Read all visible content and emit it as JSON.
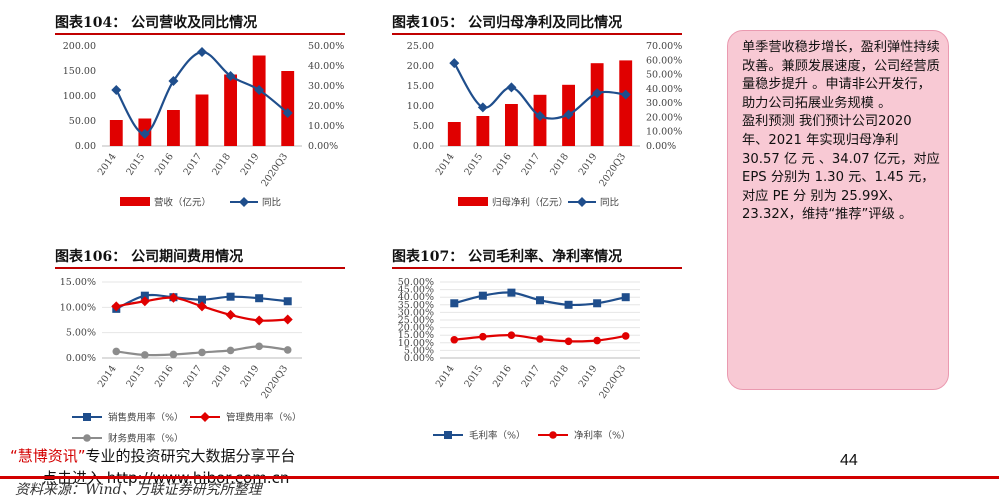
{
  "charts": {
    "c104": {
      "title": "图表104：  公司营收及同比情况",
      "chart_data": {
        "type": "bar+line",
        "categories": [
          "2014",
          "2015",
          "2016",
          "2017",
          "2018",
          "2019",
          "2020Q3"
        ],
        "series": [
          {
            "name": "营收（亿元）",
            "type": "bar",
            "axis": "left",
            "values": [
              52,
              55,
              72,
              103,
              143,
              181,
              150
            ]
          },
          {
            "name": "同比",
            "type": "line",
            "axis": "right",
            "values": [
              28.0,
              6.0,
              32.5,
              47.0,
              35.0,
              28.0,
              16.5
            ]
          }
        ],
        "left_ticks": [
          "0.00",
          "50.00",
          "100.00",
          "150.00",
          "200.00"
        ],
        "right_ticks": [
          "0.00%",
          "10.00%",
          "20.00%",
          "30.00%",
          "40.00%",
          "50.00%"
        ],
        "ylim_left": [
          0,
          200
        ],
        "ylim_right": [
          0,
          50
        ],
        "legend": "bottom"
      }
    },
    "c105": {
      "title": "图表105：  公司归母净利及同比情况",
      "chart_data": {
        "type": "bar+line",
        "categories": [
          "2014",
          "2015",
          "2016",
          "2017",
          "2018",
          "2019",
          "2020Q3"
        ],
        "series": [
          {
            "name": "归母净利（亿元）",
            "type": "bar",
            "axis": "left",
            "values": [
              6,
              7.5,
              10.5,
              12.8,
              15.3,
              20.7,
              21.4
            ]
          },
          {
            "name": "同比",
            "type": "line",
            "axis": "right",
            "values": [
              58,
              27,
              41,
              21,
              22,
              37,
              36
            ]
          }
        ],
        "left_ticks": [
          "0.00",
          "5.00",
          "10.00",
          "15.00",
          "20.00",
          "25.00"
        ],
        "right_ticks": [
          "0.00%",
          "10.00%",
          "20.00%",
          "30.00%",
          "40.00%",
          "50.00%",
          "60.00%",
          "70.00%"
        ],
        "ylim_left": [
          0,
          25
        ],
        "ylim_right": [
          0,
          70
        ],
        "legend": "bottom"
      }
    },
    "c106": {
      "title": "图表106：  公司期间费用情况",
      "chart_data": {
        "type": "line",
        "categories": [
          "2014",
          "2015",
          "2016",
          "2017",
          "2018",
          "2019",
          "2020Q3"
        ],
        "series": [
          {
            "name": "销售费用率（%）",
            "values": [
              9.7,
              12.3,
              12.0,
              11.5,
              12.1,
              11.8,
              11.2
            ],
            "color": "#1f4e8c",
            "marker": "square"
          },
          {
            "name": "管理费用率（%）",
            "values": [
              10.2,
              11.2,
              11.9,
              10.2,
              8.5,
              7.4,
              7.6
            ],
            "color": "#e00000",
            "marker": "diamond"
          },
          {
            "name": "财务费用率（%）",
            "values": [
              1.3,
              0.6,
              0.7,
              1.1,
              1.5,
              2.3,
              1.6
            ],
            "color": "#8c8c8c",
            "marker": "circle"
          }
        ],
        "ticks": [
          "0.00%",
          "5.00%",
          "10.00%",
          "15.00%"
        ],
        "ylim": [
          0,
          15
        ],
        "legend": "bottom"
      }
    },
    "c107": {
      "title": "图表107：  公司毛利率、净利率情况",
      "chart_data": {
        "type": "line",
        "categories": [
          "2014",
          "2015",
          "2016",
          "2017",
          "2018",
          "2019",
          "2020Q3"
        ],
        "series": [
          {
            "name": "毛利率（%）",
            "values": [
              36,
              41,
              43,
              38,
              35,
              36,
              40
            ],
            "color": "#1f4e8c",
            "marker": "square"
          },
          {
            "name": "净利率（%）",
            "values": [
              12,
              14,
              15,
              12.5,
              11,
              11.5,
              14.5
            ],
            "color": "#e00000",
            "marker": "circle"
          }
        ],
        "ticks": [
          "0.00%",
          "5.00%",
          "10.00%",
          "15.00%",
          "20.00%",
          "25.00%",
          "30.00%",
          "35.00%",
          "40.00%",
          "45.00%",
          "50.00%"
        ],
        "ylim": [
          0,
          50
        ],
        "legend": "bottom"
      }
    }
  },
  "sidebar": {
    "paragraphs": [
      "单季营收稳步增长，盈利弹性持续改善。兼顾发展速度，公司经营质量稳步提升 。申请非公开发行，助力公司拓展业务规模 。",
      "盈利预测 我们预计公司2020 年、2021 年实现归母净利 30.57 亿 元 、34.07 亿元，对应 EPS 分别为 1.30 元、1.45 元，对应 PE 分 别为 25.99X、23.32X，维持“推荐”评级 。"
    ]
  },
  "footer": {
    "page_number": "44",
    "watermark_brand": "“慧博资讯”",
    "watermark_text": "专业的投资研究大数据分享平台",
    "watermark_line2": "点击进入 http://www.hibor.com.cn",
    "source": "资料来源：Wind、万联证券研究所整理"
  },
  "colors": {
    "accent_red": "#e00000",
    "line_blue": "#1f4e8c",
    "box_pink": "#f8c9d4"
  }
}
